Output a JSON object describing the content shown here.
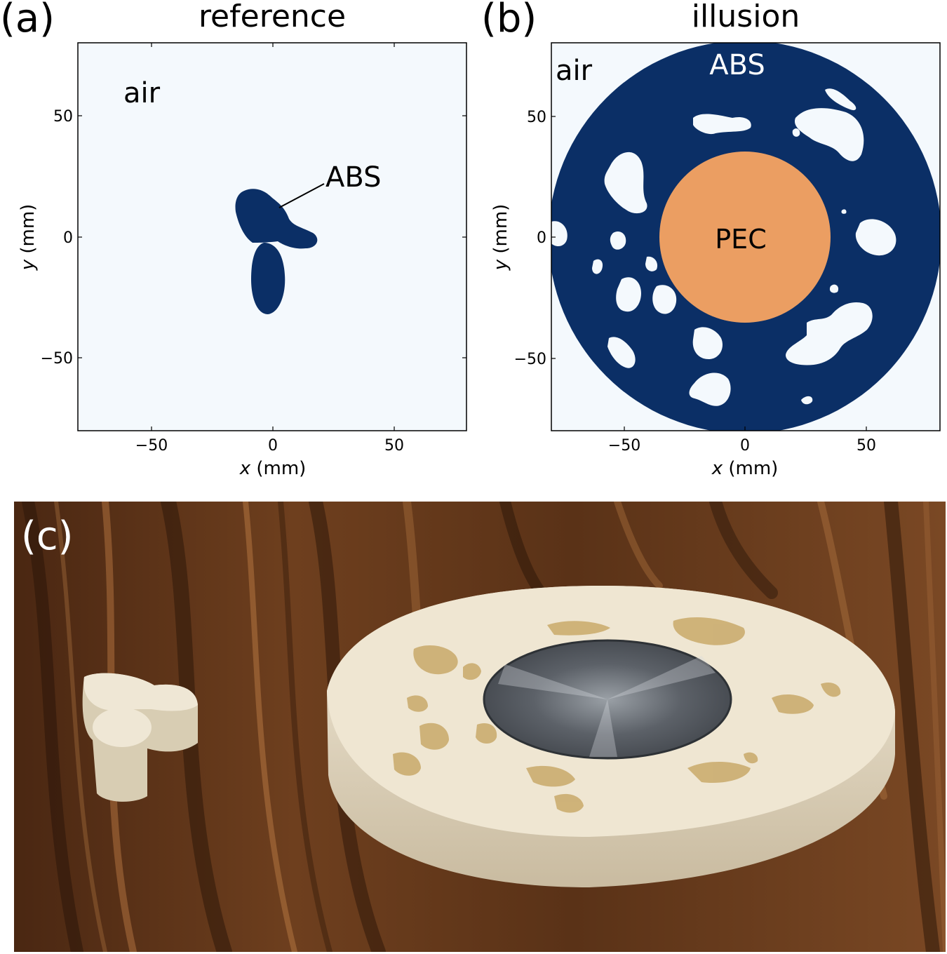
{
  "panel_a": {
    "letter": "(a)",
    "title": "reference",
    "labels": {
      "air": "air",
      "abs": "ABS"
    },
    "x_axis": {
      "label_var": "x",
      "label_unit": " (mm)",
      "ticks": [
        "−50",
        "0",
        "50"
      ]
    },
    "y_axis": {
      "label_var": "y",
      "label_unit": " (mm)",
      "ticks": [
        "50",
        "0",
        "−50"
      ]
    },
    "colors": {
      "air": "#f4f9fd",
      "abs": "#0b2f66"
    }
  },
  "panel_b": {
    "letter": "(b)",
    "title": "illusion",
    "labels": {
      "air": "air",
      "abs": "ABS",
      "pec": "PEC"
    },
    "x_axis": {
      "label_var": "x",
      "label_unit": " (mm)",
      "ticks": [
        "−50",
        "0",
        "50"
      ]
    },
    "y_axis": {
      "label_var": "y",
      "label_unit": " (mm)",
      "ticks": [
        "50",
        "0",
        "−50"
      ]
    },
    "colors": {
      "air": "#f4f9fd",
      "abs": "#0b2f66",
      "pec": "#eb9e62"
    }
  },
  "panel_c": {
    "letter": "(c)",
    "colors": {
      "wood_dark": "#3a1f0e",
      "wood_mid": "#6b3d1d",
      "wood_light": "#9a6236",
      "plastic": "#ede4cf",
      "metal": "#6d7278"
    }
  }
}
